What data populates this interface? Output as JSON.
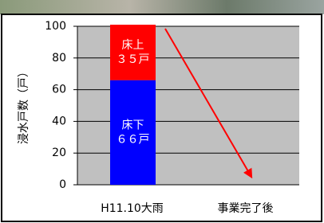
{
  "chart_data": {
    "type": "stacked-bar",
    "y_label": "浸水戸数（戸）",
    "categories": [
      "H11.10大雨",
      "事業完了後"
    ],
    "series": [
      {
        "name": "床下",
        "color": "#0000ff",
        "values": [
          66,
          null
        ],
        "value_labels": [
          "６６戸",
          null
        ]
      },
      {
        "name": "床上",
        "color": "#ff0000",
        "values": [
          35,
          null
        ],
        "value_labels": [
          "３５戸",
          null
        ]
      }
    ],
    "ylim": [
      0,
      100
    ],
    "yticks": [
      0,
      20,
      40,
      60,
      80,
      100
    ],
    "grid": true,
    "plot_background": "#c0c0c0"
  }
}
